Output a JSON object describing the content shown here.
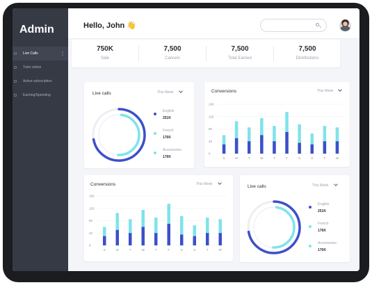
{
  "sidebar": {
    "brand": "Admin",
    "items": [
      {
        "label": "Live Calls",
        "active": true
      },
      {
        "label": "Tutor online",
        "active": false
      },
      {
        "label": "Active subscription",
        "active": false
      },
      {
        "label": "Earning/Spending",
        "active": false
      }
    ]
  },
  "header": {
    "greeting": "Hello, John 👋",
    "search_placeholder": ""
  },
  "stats": [
    {
      "value": "750K",
      "label": "Sale"
    },
    {
      "value": "7,500",
      "label": "Cancels"
    },
    {
      "value": "7,500",
      "label": "Total Earned"
    },
    {
      "value": "7,500",
      "label": "Distributions"
    }
  ],
  "live_calls_1": {
    "title": "Live calls",
    "period": "This Week",
    "legend": [
      {
        "name": "English",
        "value": "251K",
        "color": "#3d4fc8"
      },
      {
        "name": "French",
        "value": "176K",
        "color": "#7fe3ea"
      },
      {
        "name": "Accessories",
        "value": "176K",
        "color": "#7fe3ea"
      }
    ]
  },
  "live_calls_2": {
    "title": "Live calls",
    "period": "This Week",
    "legend": [
      {
        "name": "English",
        "value": "251K",
        "color": "#3d4fc8"
      },
      {
        "name": "French",
        "value": "176K",
        "color": "#7fe3ea"
      },
      {
        "name": "Accessories",
        "value": "176K",
        "color": "#7fe3ea"
      }
    ]
  },
  "conversions_1": {
    "title": "Conversions",
    "period": "This Week"
  },
  "conversions_2": {
    "title": "Conversions",
    "period": "This Week"
  },
  "chart_data": [
    {
      "type": "bar",
      "title": "Conversions",
      "categories": [
        "S",
        "M",
        "T",
        "W",
        "T",
        "F",
        "S",
        "S",
        "T",
        "W"
      ],
      "yticks": [
        0,
        40,
        80,
        120,
        160
      ],
      "ylim": [
        0,
        160
      ],
      "series": [
        {
          "values": [
            30,
            50,
            40,
            60,
            40,
            70,
            35,
            30,
            40,
            40
          ],
          "color": "#3d4fc8"
        },
        {
          "values": [
            60,
            105,
            85,
            115,
            90,
            135,
            95,
            65,
            90,
            85
          ],
          "color": "#7fe3ea"
        }
      ]
    },
    {
      "type": "bar",
      "title": "Conversions",
      "categories": [
        "S",
        "M",
        "T",
        "W",
        "T",
        "F",
        "S",
        "S",
        "T",
        "W"
      ],
      "yticks": [
        0,
        40,
        80,
        120,
        160
      ],
      "ylim": [
        0,
        160
      ],
      "series": [
        {
          "values": [
            30,
            50,
            40,
            60,
            40,
            70,
            35,
            30,
            40,
            40
          ],
          "color": "#3d4fc8"
        },
        {
          "values": [
            60,
            105,
            85,
            115,
            90,
            135,
            95,
            65,
            90,
            85
          ],
          "color": "#7fe3ea"
        }
      ]
    },
    {
      "type": "pie",
      "title": "Live calls",
      "labels": [
        "English",
        "French",
        "Accessories"
      ],
      "values": [
        251,
        176,
        176
      ]
    },
    {
      "type": "pie",
      "title": "Live calls",
      "labels": [
        "English",
        "French",
        "Accessories"
      ],
      "values": [
        251,
        176,
        176
      ]
    }
  ]
}
